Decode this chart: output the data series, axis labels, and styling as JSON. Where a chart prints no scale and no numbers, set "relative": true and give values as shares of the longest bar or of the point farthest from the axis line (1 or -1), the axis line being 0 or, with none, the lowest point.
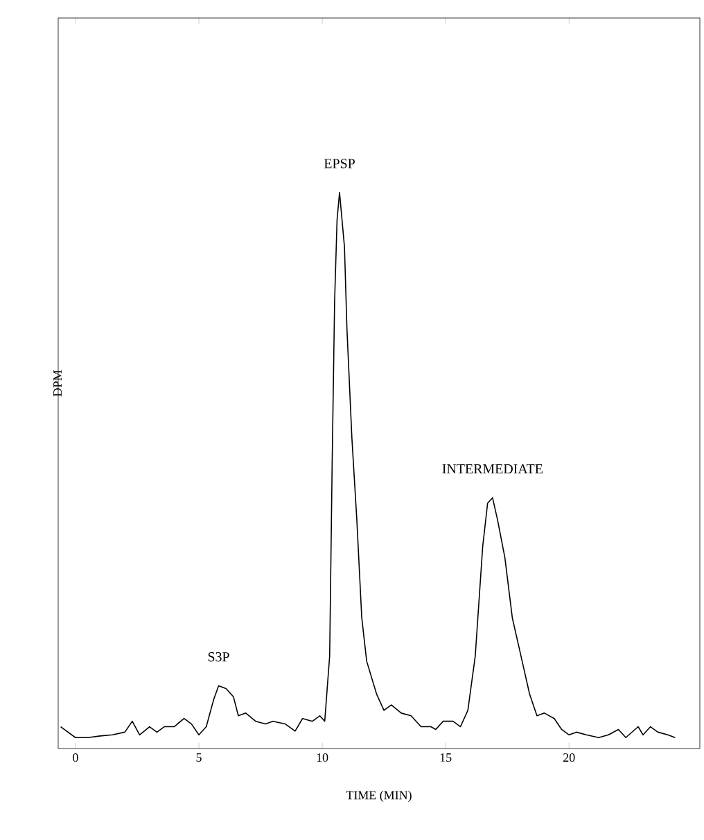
{
  "chart_data": {
    "type": "line",
    "relative": true,
    "xlabel": "TIME (MIN)",
    "ylabel": "DPM",
    "xlim": [
      -0.7,
      25.3
    ],
    "xticks": [
      0,
      5,
      10,
      15,
      20
    ],
    "marker": "none",
    "line_style": "solid",
    "annotations": [
      {
        "text": "S3P",
        "x": 5.8,
        "y": 0.095
      },
      {
        "text": "EPSP",
        "x": 10.7,
        "y": 1.0
      },
      {
        "text": "INTERMEDIATE",
        "x": 16.9,
        "y": 0.44
      }
    ],
    "series": [
      {
        "color": "#000000",
        "x": [
          -0.6,
          0,
          0.5,
          1,
          1.5,
          2,
          2.3,
          2.6,
          3,
          3.3,
          3.6,
          4,
          4.4,
          4.7,
          5,
          5.3,
          5.6,
          5.8,
          6.1,
          6.4,
          6.6,
          6.9,
          7.3,
          7.7,
          8,
          8.5,
          8.9,
          9.2,
          9.6,
          9.9,
          10.1,
          10.3,
          10.4,
          10.5,
          10.6,
          10.7,
          10.9,
          11.0,
          11.2,
          11.4,
          11.6,
          11.8,
          12.2,
          12.5,
          12.8,
          13.2,
          13.6,
          14.0,
          14.4,
          14.6,
          14.9,
          15.3,
          15.6,
          15.9,
          16.2,
          16.5,
          16.7,
          16.9,
          17.1,
          17.4,
          17.7,
          18.0,
          18.4,
          18.7,
          19.0,
          19.4,
          19.7,
          20.0,
          20.3,
          20.7,
          21.2,
          21.6,
          22.0,
          22.3,
          22.8,
          23.0,
          23.3,
          23.6,
          24.0,
          24.3
        ],
        "values": [
          0.02,
          0.0,
          0.0,
          0.003,
          0.005,
          0.01,
          0.03,
          0.005,
          0.02,
          0.01,
          0.02,
          0.02,
          0.035,
          0.025,
          0.005,
          0.02,
          0.07,
          0.095,
          0.09,
          0.075,
          0.04,
          0.045,
          0.03,
          0.025,
          0.03,
          0.025,
          0.012,
          0.035,
          0.03,
          0.04,
          0.03,
          0.15,
          0.5,
          0.8,
          0.95,
          1.0,
          0.9,
          0.75,
          0.55,
          0.4,
          0.22,
          0.14,
          0.08,
          0.05,
          0.06,
          0.045,
          0.04,
          0.02,
          0.02,
          0.015,
          0.03,
          0.03,
          0.02,
          0.05,
          0.15,
          0.35,
          0.43,
          0.44,
          0.4,
          0.33,
          0.22,
          0.16,
          0.08,
          0.04,
          0.045,
          0.035,
          0.015,
          0.005,
          0.01,
          0.005,
          0.0,
          0.005,
          0.015,
          0.0,
          0.02,
          0.005,
          0.02,
          0.01,
          0.005,
          0.0
        ]
      }
    ]
  }
}
